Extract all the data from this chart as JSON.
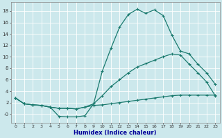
{
  "xlabel": "Humidex (Indice chaleur)",
  "bg_color": "#cce8ec",
  "line_color": "#1a7a6e",
  "grid_color": "#ffffff",
  "xlim": [
    -0.5,
    23.5
  ],
  "ylim": [
    -1.5,
    19.5
  ],
  "xticks": [
    0,
    1,
    2,
    3,
    4,
    5,
    6,
    7,
    8,
    9,
    10,
    11,
    12,
    13,
    14,
    15,
    16,
    17,
    18,
    19,
    20,
    21,
    22,
    23
  ],
  "ytick_vals": [
    0,
    2,
    4,
    6,
    8,
    10,
    12,
    14,
    16,
    18
  ],
  "ytick_labels": [
    "-0",
    "2",
    "4",
    "6",
    "8",
    "10",
    "12",
    "14",
    "16",
    "18"
  ],
  "curve1_x": [
    0,
    1,
    2,
    3,
    4,
    5,
    6,
    7,
    8,
    9,
    10,
    11,
    12,
    13,
    14,
    15,
    16,
    17,
    18,
    19,
    20,
    21,
    22,
    23
  ],
  "curve1_y": [
    2.8,
    1.8,
    1.6,
    1.5,
    1.2,
    -0.4,
    -0.5,
    -0.5,
    -0.3,
    1.8,
    7.5,
    11.5,
    15.2,
    17.4,
    18.3,
    17.6,
    18.2,
    17.2,
    13.8,
    11.0,
    10.5,
    8.7,
    7.2,
    5.2
  ],
  "curve2_x": [
    0,
    1,
    2,
    3,
    4,
    5,
    6,
    7,
    8,
    9,
    10,
    11,
    12,
    13,
    14,
    15,
    16,
    17,
    18,
    19,
    20,
    21,
    22,
    23
  ],
  "curve2_y": [
    2.8,
    1.8,
    1.6,
    1.5,
    1.2,
    1.0,
    1.0,
    0.9,
    1.2,
    1.8,
    3.2,
    4.8,
    6.0,
    7.2,
    8.2,
    8.8,
    9.4,
    10.0,
    10.5,
    10.3,
    8.7,
    7.2,
    5.6,
    3.2
  ],
  "curve3_x": [
    0,
    1,
    2,
    3,
    4,
    5,
    6,
    7,
    8,
    9,
    10,
    11,
    12,
    13,
    14,
    15,
    16,
    17,
    18,
    19,
    20,
    21,
    22,
    23
  ],
  "curve3_y": [
    2.8,
    1.8,
    1.6,
    1.5,
    1.2,
    1.0,
    1.0,
    0.9,
    1.2,
    1.5,
    1.6,
    1.8,
    2.0,
    2.2,
    2.4,
    2.6,
    2.8,
    3.0,
    3.2,
    3.3,
    3.3,
    3.3,
    3.3,
    3.3
  ]
}
